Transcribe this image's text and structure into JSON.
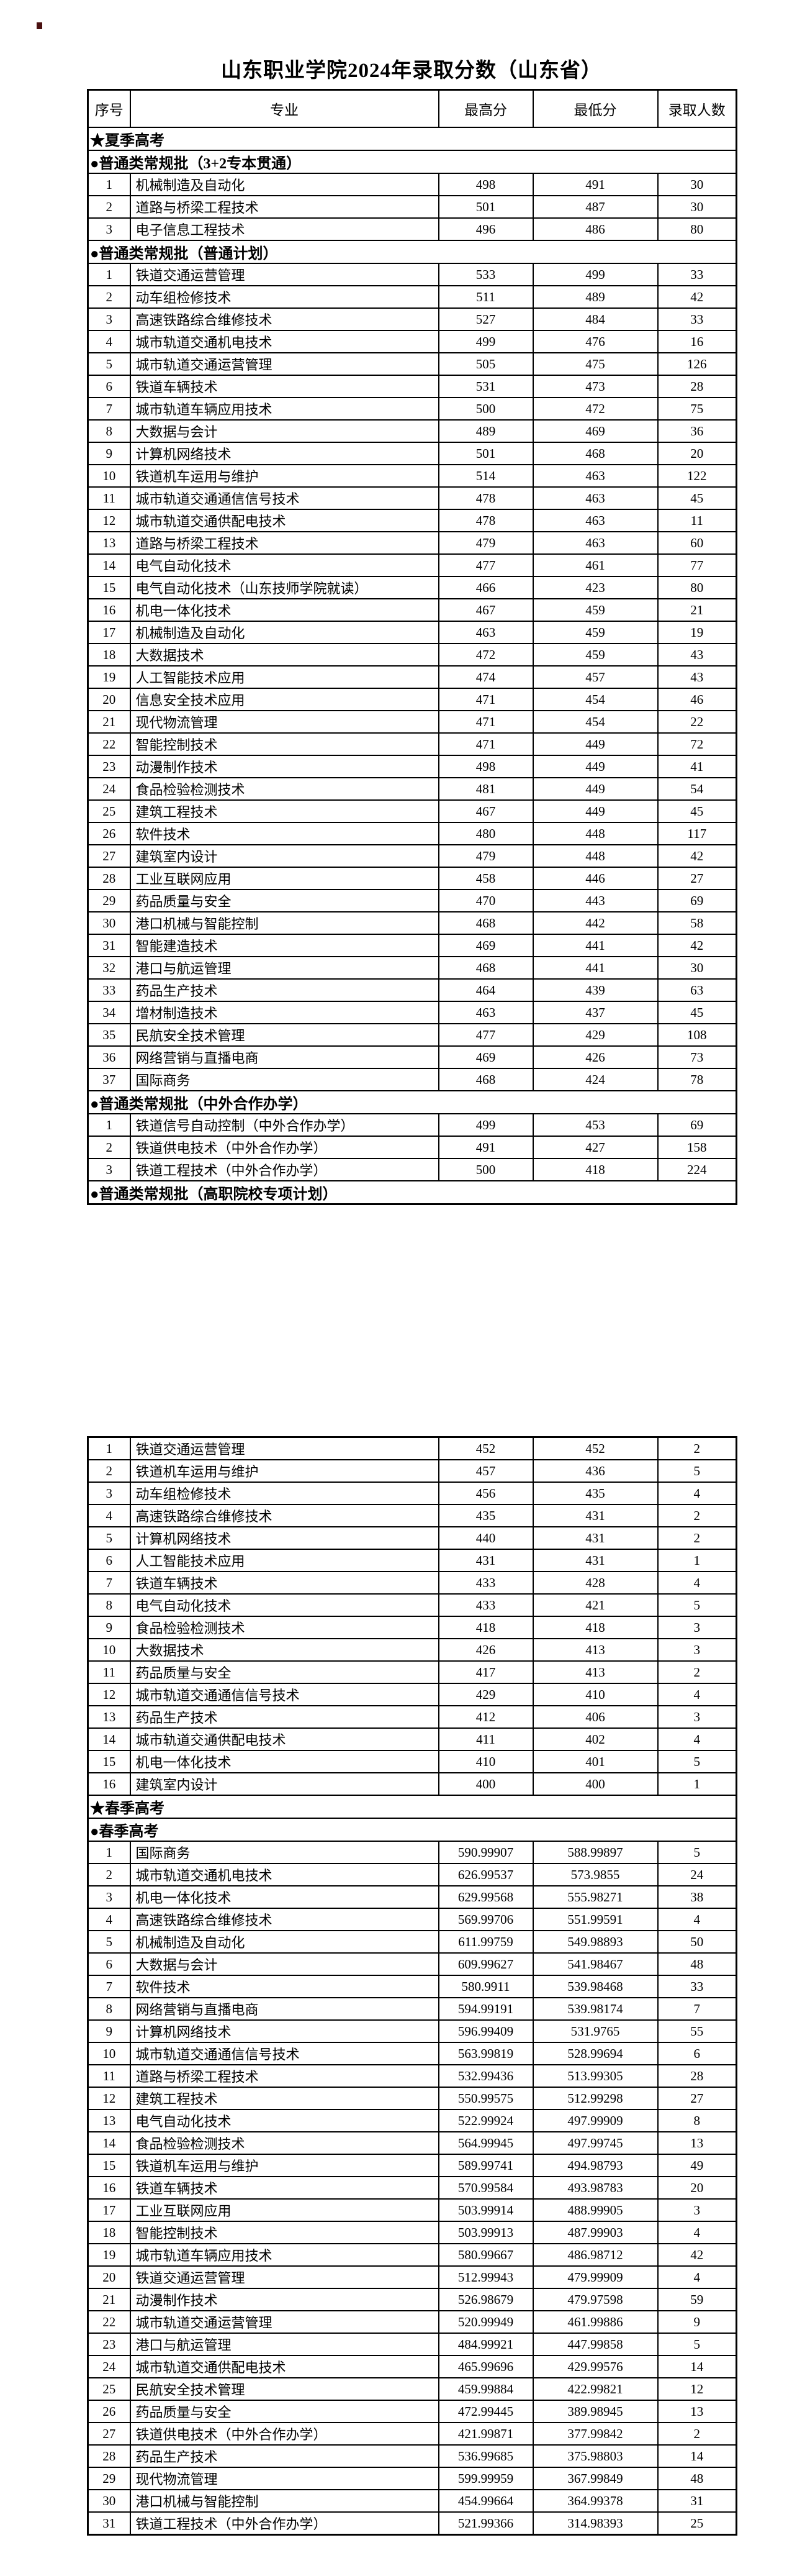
{
  "title": "山东职业学院2024年录取分数（山东省）",
  "columns": [
    "序号",
    "专业",
    "最高分",
    "最低分",
    "录取人数"
  ],
  "table1": {
    "has_header": true,
    "rows": [
      {
        "s": "★夏季高考"
      },
      {
        "s": "●普通类常规批（3+2专本贯通）"
      },
      [
        "1",
        "机械制造及自动化",
        "498",
        "491",
        "30"
      ],
      [
        "2",
        "道路与桥梁工程技术",
        "501",
        "487",
        "30"
      ],
      [
        "3",
        "电子信息工程技术",
        "496",
        "486",
        "80"
      ],
      {
        "s": "●普通类常规批（普通计划）"
      },
      [
        "1",
        "铁道交通运营管理",
        "533",
        "499",
        "33"
      ],
      [
        "2",
        "动车组检修技术",
        "511",
        "489",
        "42"
      ],
      [
        "3",
        "高速铁路综合维修技术",
        "527",
        "484",
        "33"
      ],
      [
        "4",
        "城市轨道交通机电技术",
        "499",
        "476",
        "16"
      ],
      [
        "5",
        "城市轨道交通运营管理",
        "505",
        "475",
        "126"
      ],
      [
        "6",
        "铁道车辆技术",
        "531",
        "473",
        "28"
      ],
      [
        "7",
        "城市轨道车辆应用技术",
        "500",
        "472",
        "75"
      ],
      [
        "8",
        "大数据与会计",
        "489",
        "469",
        "36"
      ],
      [
        "9",
        "计算机网络技术",
        "501",
        "468",
        "20"
      ],
      [
        "10",
        "铁道机车运用与维护",
        "514",
        "463",
        "122"
      ],
      [
        "11",
        "城市轨道交通通信信号技术",
        "478",
        "463",
        "45"
      ],
      [
        "12",
        "城市轨道交通供配电技术",
        "478",
        "463",
        "11"
      ],
      [
        "13",
        "道路与桥梁工程技术",
        "479",
        "463",
        "60"
      ],
      [
        "14",
        "电气自动化技术",
        "477",
        "461",
        "77"
      ],
      [
        "15",
        "电气自动化技术（山东技师学院就读）",
        "466",
        "423",
        "80"
      ],
      [
        "16",
        "机电一体化技术",
        "467",
        "459",
        "21"
      ],
      [
        "17",
        "机械制造及自动化",
        "463",
        "459",
        "19"
      ],
      [
        "18",
        "大数据技术",
        "472",
        "459",
        "43"
      ],
      [
        "19",
        "人工智能技术应用",
        "474",
        "457",
        "43"
      ],
      [
        "20",
        "信息安全技术应用",
        "471",
        "454",
        "46"
      ],
      [
        "21",
        "现代物流管理",
        "471",
        "454",
        "22"
      ],
      [
        "22",
        "智能控制技术",
        "471",
        "449",
        "72"
      ],
      [
        "23",
        "动漫制作技术",
        "498",
        "449",
        "41"
      ],
      [
        "24",
        "食品检验检测技术",
        "481",
        "449",
        "54"
      ],
      [
        "25",
        "建筑工程技术",
        "467",
        "449",
        "45"
      ],
      [
        "26",
        "软件技术",
        "480",
        "448",
        "117"
      ],
      [
        "27",
        "建筑室内设计",
        "479",
        "448",
        "42"
      ],
      [
        "28",
        "工业互联网应用",
        "458",
        "446",
        "27"
      ],
      [
        "29",
        "药品质量与安全",
        "470",
        "443",
        "69"
      ],
      [
        "30",
        "港口机械与智能控制",
        "468",
        "442",
        "58"
      ],
      [
        "31",
        "智能建造技术",
        "469",
        "441",
        "42"
      ],
      [
        "32",
        "港口与航运管理",
        "468",
        "441",
        "30"
      ],
      [
        "33",
        "药品生产技术",
        "464",
        "439",
        "63"
      ],
      [
        "34",
        "增材制造技术",
        "463",
        "437",
        "45"
      ],
      [
        "35",
        "民航安全技术管理",
        "477",
        "429",
        "108"
      ],
      [
        "36",
        "网络营销与直播电商",
        "469",
        "426",
        "73"
      ],
      [
        "37",
        "国际商务",
        "468",
        "424",
        "78"
      ],
      {
        "s": "●普通类常规批（中外合作办学）"
      },
      [
        "1",
        "铁道信号自动控制（中外合作办学）",
        "499",
        "453",
        "69"
      ],
      [
        "2",
        "铁道供电技术（中外合作办学）",
        "491",
        "427",
        "158"
      ],
      [
        "3",
        "铁道工程技术（中外合作办学）",
        "500",
        "418",
        "224"
      ],
      {
        "s": "●普通类常规批（高职院校专项计划）"
      }
    ]
  },
  "table2": {
    "has_header": false,
    "rows": [
      [
        "1",
        "铁道交通运营管理",
        "452",
        "452",
        "2"
      ],
      [
        "2",
        "铁道机车运用与维护",
        "457",
        "436",
        "5"
      ],
      [
        "3",
        "动车组检修技术",
        "456",
        "435",
        "4"
      ],
      [
        "4",
        "高速铁路综合维修技术",
        "435",
        "431",
        "2"
      ],
      [
        "5",
        "计算机网络技术",
        "440",
        "431",
        "2"
      ],
      [
        "6",
        "人工智能技术应用",
        "431",
        "431",
        "1"
      ],
      [
        "7",
        "铁道车辆技术",
        "433",
        "428",
        "4"
      ],
      [
        "8",
        "电气自动化技术",
        "433",
        "421",
        "5"
      ],
      [
        "9",
        "食品检验检测技术",
        "418",
        "418",
        "3"
      ],
      [
        "10",
        "大数据技术",
        "426",
        "413",
        "3"
      ],
      [
        "11",
        "药品质量与安全",
        "417",
        "413",
        "2"
      ],
      [
        "12",
        "城市轨道交通通信信号技术",
        "429",
        "410",
        "4"
      ],
      [
        "13",
        "药品生产技术",
        "412",
        "406",
        "3"
      ],
      [
        "14",
        "城市轨道交通供配电技术",
        "411",
        "402",
        "4"
      ],
      [
        "15",
        "机电一体化技术",
        "410",
        "401",
        "5"
      ],
      [
        "16",
        "建筑室内设计",
        "400",
        "400",
        "1"
      ],
      {
        "s": "★春季高考"
      },
      {
        "s": "●春季高考"
      },
      [
        "1",
        "国际商务",
        "590.99907",
        "588.99897",
        "5"
      ],
      [
        "2",
        "城市轨道交通机电技术",
        "626.99537",
        "573.9855",
        "24"
      ],
      [
        "3",
        "机电一体化技术",
        "629.99568",
        "555.98271",
        "38"
      ],
      [
        "4",
        "高速铁路综合维修技术",
        "569.99706",
        "551.99591",
        "4"
      ],
      [
        "5",
        "机械制造及自动化",
        "611.99759",
        "549.98893",
        "50"
      ],
      [
        "6",
        "大数据与会计",
        "609.99627",
        "541.98467",
        "48"
      ],
      [
        "7",
        "软件技术",
        "580.9911",
        "539.98468",
        "33"
      ],
      [
        "8",
        "网络营销与直播电商",
        "594.99191",
        "539.98174",
        "7"
      ],
      [
        "9",
        "计算机网络技术",
        "596.99409",
        "531.9765",
        "55"
      ],
      [
        "10",
        "城市轨道交通通信信号技术",
        "563.99819",
        "528.99694",
        "6"
      ],
      [
        "11",
        "道路与桥梁工程技术",
        "532.99436",
        "513.99305",
        "28"
      ],
      [
        "12",
        "建筑工程技术",
        "550.99575",
        "512.99298",
        "27"
      ],
      [
        "13",
        "电气自动化技术",
        "522.99924",
        "497.99909",
        "8"
      ],
      [
        "14",
        "食品检验检测技术",
        "564.99945",
        "497.99745",
        "13"
      ],
      [
        "15",
        "铁道机车运用与维护",
        "589.99741",
        "494.98793",
        "49"
      ],
      [
        "16",
        "铁道车辆技术",
        "570.99584",
        "493.98783",
        "20"
      ],
      [
        "17",
        "工业互联网应用",
        "503.99914",
        "488.99905",
        "3"
      ],
      [
        "18",
        "智能控制技术",
        "503.99913",
        "487.99903",
        "4"
      ],
      [
        "19",
        "城市轨道车辆应用技术",
        "580.99667",
        "486.98712",
        "42"
      ],
      [
        "20",
        "铁道交通运营管理",
        "512.99943",
        "479.99909",
        "4"
      ],
      [
        "21",
        "动漫制作技术",
        "526.98679",
        "479.97598",
        "59"
      ],
      [
        "22",
        "城市轨道交通运营管理",
        "520.99949",
        "461.99886",
        "9"
      ],
      [
        "23",
        "港口与航运管理",
        "484.99921",
        "447.99858",
        "5"
      ],
      [
        "24",
        "城市轨道交通供配电技术",
        "465.99696",
        "429.99576",
        "14"
      ],
      [
        "25",
        "民航安全技术管理",
        "459.99884",
        "422.99821",
        "12"
      ],
      [
        "26",
        "药品质量与安全",
        "472.99445",
        "389.98945",
        "13"
      ],
      [
        "27",
        "铁道供电技术（中外合作办学）",
        "421.99871",
        "377.99842",
        "2"
      ],
      [
        "28",
        "药品生产技术",
        "536.99685",
        "375.98803",
        "14"
      ],
      [
        "29",
        "现代物流管理",
        "599.99959",
        "367.99849",
        "48"
      ],
      [
        "30",
        "港口机械与智能控制",
        "454.99664",
        "364.99378",
        "31"
      ],
      [
        "31",
        "铁道工程技术（中外合作办学）",
        "521.99366",
        "314.98393",
        "25"
      ]
    ]
  }
}
